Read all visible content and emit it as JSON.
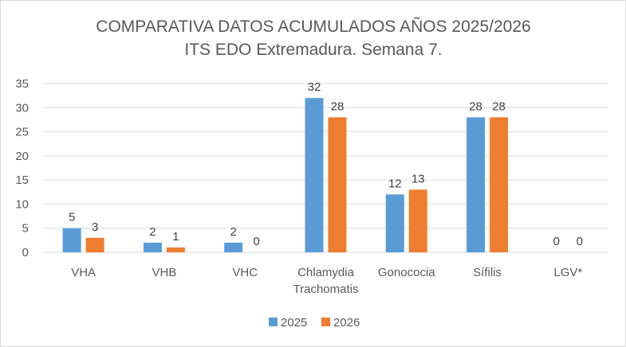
{
  "chart_data": {
    "type": "bar",
    "title": "COMPARATIVA DATOS ACUMULADOS AÑOS 2025/2026",
    "subtitle": "ITS EDO Extremadura. Semana 7.",
    "categories": [
      "VHA",
      "VHB",
      "VHC",
      "Chlamydia Trachomatis",
      "Gonococia",
      "Sífilis",
      "LGV*"
    ],
    "category_lines": [
      [
        "VHA"
      ],
      [
        "VHB"
      ],
      [
        "VHC"
      ],
      [
        "Chlamydia",
        "Trachomatis"
      ],
      [
        "Gonococia"
      ],
      [
        "Sífilis"
      ],
      [
        "LGV*"
      ]
    ],
    "series": [
      {
        "name": "2025",
        "values": [
          5,
          2,
          2,
          32,
          12,
          28,
          0
        ],
        "color": "#5b9bd5"
      },
      {
        "name": "2026",
        "values": [
          3,
          1,
          0,
          28,
          13,
          28,
          0
        ],
        "color": "#ed7d31"
      }
    ],
    "ylim": [
      0,
      35
    ],
    "yticks": [
      0,
      5,
      10,
      15,
      20,
      25,
      30,
      35
    ],
    "grid": true,
    "legend": "bottom",
    "data_labels": true
  }
}
